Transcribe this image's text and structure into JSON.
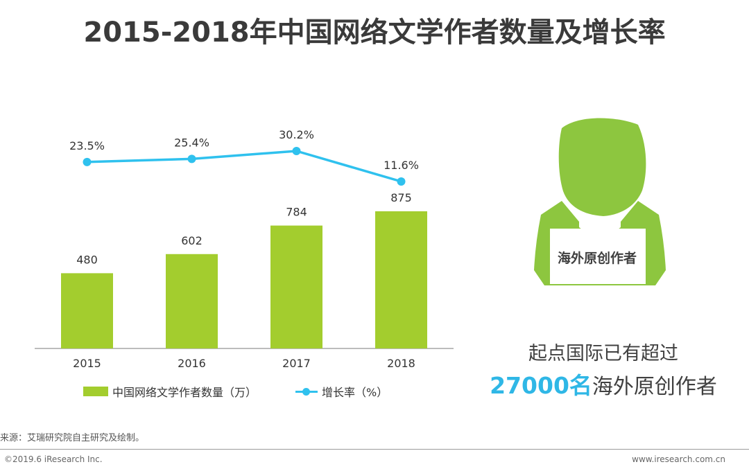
{
  "title": "2015-2018年中国网络文学作者数量及增长率",
  "chart_data": {
    "type": "bar",
    "categories": [
      "2015",
      "2016",
      "2017",
      "2018"
    ],
    "series": [
      {
        "name": "中国网络文学作者数量（万）",
        "kind": "bar",
        "values": [
          480,
          602,
          784,
          875
        ],
        "labels": [
          "480",
          "602",
          "784",
          "875"
        ],
        "color": "#a3cd2e"
      },
      {
        "name": "增长率（%）",
        "kind": "line",
        "values": [
          23.5,
          25.4,
          30.2,
          11.6
        ],
        "labels": [
          "23.5%",
          "25.4%",
          "30.2%",
          "11.6%"
        ],
        "color": "#2fc1ee"
      }
    ],
    "bar_ylim": [
      0,
      875
    ],
    "line_ylim": [
      11.6,
      30.2
    ],
    "legend_position": "bottom",
    "grid": false
  },
  "side_card": {
    "sign_text": "海外原创作者",
    "icon": "person-holding-sign-icon",
    "icon_color": "#8dc63f",
    "line1": "起点国际已有超过",
    "highlight": "27000名",
    "line2_rest": "海外原创作者",
    "highlight_color": "#2fb7e6"
  },
  "footer": {
    "source": "来源：艾瑞研究院自主研究及绘制。",
    "copyright": "©2019.6 iResearch Inc.",
    "website": "www.iresearch.com.cn"
  }
}
